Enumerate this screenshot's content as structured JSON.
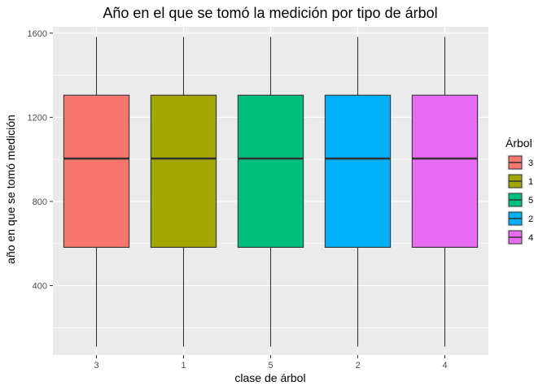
{
  "chart_data": {
    "type": "boxplot",
    "title": "Año en el que se tomó la medición por tipo de árbol",
    "xlabel": "clase de árbol",
    "ylabel": "año en que se tomó medición",
    "categories": [
      "3",
      "1",
      "5",
      "2",
      "4"
    ],
    "ylim": [
      70,
      1630
    ],
    "yticks": [
      400,
      800,
      1200,
      1600
    ],
    "grid": true,
    "legend": {
      "title": "Árbol",
      "position": "right",
      "entries": [
        "3",
        "1",
        "5",
        "2",
        "4"
      ]
    },
    "boxes": [
      {
        "category": "3",
        "min": 110,
        "q1": 582,
        "median": 1004,
        "q3": 1305,
        "max": 1582,
        "color": "#F8766D"
      },
      {
        "category": "1",
        "min": 110,
        "q1": 582,
        "median": 1004,
        "q3": 1305,
        "max": 1582,
        "color": "#A3A500"
      },
      {
        "category": "5",
        "min": 110,
        "q1": 582,
        "median": 1004,
        "q3": 1305,
        "max": 1582,
        "color": "#00BF7D"
      },
      {
        "category": "2",
        "min": 110,
        "q1": 582,
        "median": 1004,
        "q3": 1305,
        "max": 1582,
        "color": "#00B0F6"
      },
      {
        "category": "4",
        "min": 110,
        "q1": 582,
        "median": 1004,
        "q3": 1305,
        "max": 1582,
        "color": "#E76BF3"
      }
    ]
  }
}
